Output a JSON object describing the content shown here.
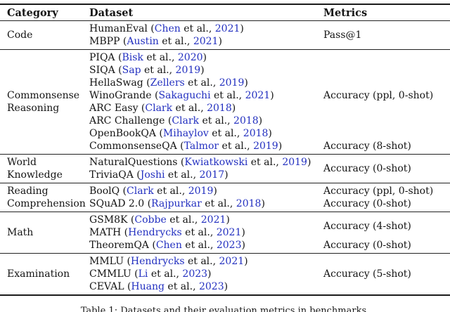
{
  "table": {
    "headers": [
      "Category",
      "Dataset",
      "Metrics"
    ],
    "sections": [
      {
        "category": "Code",
        "rows": [
          {
            "name": "HumanEval",
            "author": "Chen",
            "year": "2021"
          },
          {
            "name": "MBPP",
            "author": "Austin",
            "year": "2021"
          }
        ],
        "metrics": [
          {
            "label": "Pass@1",
            "span": 2
          }
        ]
      },
      {
        "category": "Commonsense Reasoning",
        "rows": [
          {
            "name": "PIQA",
            "author": "Bisk",
            "year": "2020"
          },
          {
            "name": "SIQA",
            "author": "Sap",
            "year": "2019"
          },
          {
            "name": "HellaSwag",
            "author": "Zellers",
            "year": "2019"
          },
          {
            "name": "WinoGrande",
            "author": "Sakaguchi",
            "year": "2021"
          },
          {
            "name": "ARC Easy",
            "author": "Clark",
            "year": "2018"
          },
          {
            "name": "ARC Challenge",
            "author": "Clark",
            "year": "2018"
          },
          {
            "name": "OpenBookQA",
            "author": "Mihaylov",
            "year": "2018"
          },
          {
            "name": "CommonsenseQA",
            "author": "Talmor",
            "year": "2019"
          }
        ],
        "metrics": [
          {
            "label": "Accuracy (ppl, 0-shot)",
            "span": 7
          },
          {
            "label": "Accuracy (8-shot)",
            "span": 1
          }
        ]
      },
      {
        "category": "World Knowledge",
        "rows": [
          {
            "name": "NaturalQuestions",
            "author": "Kwiatkowski",
            "year": "2019"
          },
          {
            "name": "TriviaQA",
            "author": "Joshi",
            "year": "2017"
          }
        ],
        "metrics": [
          {
            "label": "Accuracy (0-shot)",
            "span": 2
          }
        ]
      },
      {
        "category": "Reading Comprehension",
        "rows": [
          {
            "name": "BoolQ",
            "author": "Clark",
            "year": "2019"
          },
          {
            "name": "SQuAD 2.0",
            "author": "Rajpurkar",
            "year": "2018"
          }
        ],
        "metrics": [
          {
            "label": "Accuracy (ppl, 0-shot)",
            "span": 1
          },
          {
            "label": "Accuracy (0-shot)",
            "span": 1
          }
        ]
      },
      {
        "category": "Math",
        "rows": [
          {
            "name": "GSM8K",
            "author": "Cobbe",
            "year": "2021"
          },
          {
            "name": "MATH",
            "author": "Hendrycks",
            "year": "2021"
          },
          {
            "name": "TheoremQA",
            "author": "Chen",
            "year": "2023"
          }
        ],
        "metrics": [
          {
            "label": "Accuracy (4-shot)",
            "span": 2
          },
          {
            "label": "Accuracy (0-shot)",
            "span": 1
          }
        ]
      },
      {
        "category": "Examination",
        "rows": [
          {
            "name": "MMLU",
            "author": "Hendrycks",
            "year": "2021"
          },
          {
            "name": "CMMLU",
            "author": "Li",
            "year": "2023"
          },
          {
            "name": "CEVAL",
            "author": "Huang",
            "year": "2023"
          }
        ],
        "metrics": [
          {
            "label": "Accuracy (5-shot)",
            "span": 3
          }
        ]
      }
    ],
    "citation_etal_text": " et al., ",
    "link_color": "#2330c0"
  },
  "caption": "Table 1: Datasets and their evaluation metrics in benchmarks."
}
